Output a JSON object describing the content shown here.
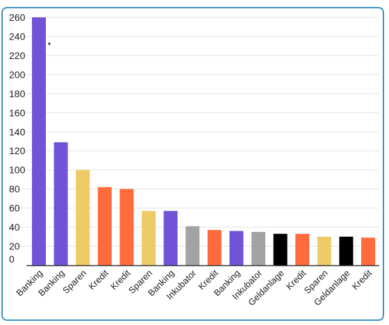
{
  "chart_data": {
    "type": "bar",
    "title": "",
    "xlabel": "",
    "ylabel": "",
    "ylim": [
      0,
      260
    ],
    "yticks": [
      0,
      20,
      40,
      60,
      80,
      100,
      120,
      140,
      160,
      180,
      200,
      220,
      240,
      260
    ],
    "grid": true,
    "legend": "none",
    "categories": [
      "Banking",
      "Banking",
      "Sparen",
      "Kredit",
      "Kredit",
      "Sparen",
      "Banking",
      "Inkubator",
      "Kredit",
      "Banking",
      "Inkubator",
      "Geldanlage",
      "Kredit",
      "Sparen",
      "Geldanlage",
      "Kredit"
    ],
    "values": [
      260,
      129,
      100,
      82,
      80,
      57,
      57,
      41,
      37,
      36,
      35,
      33,
      33,
      30,
      30,
      29
    ],
    "colors": {
      "Banking": "#7153d8",
      "Sparen": "#efcb68",
      "Kredit": "#ff6b3d",
      "Inkubator": "#a3a3a3",
      "Geldanlage": "#000000"
    }
  }
}
